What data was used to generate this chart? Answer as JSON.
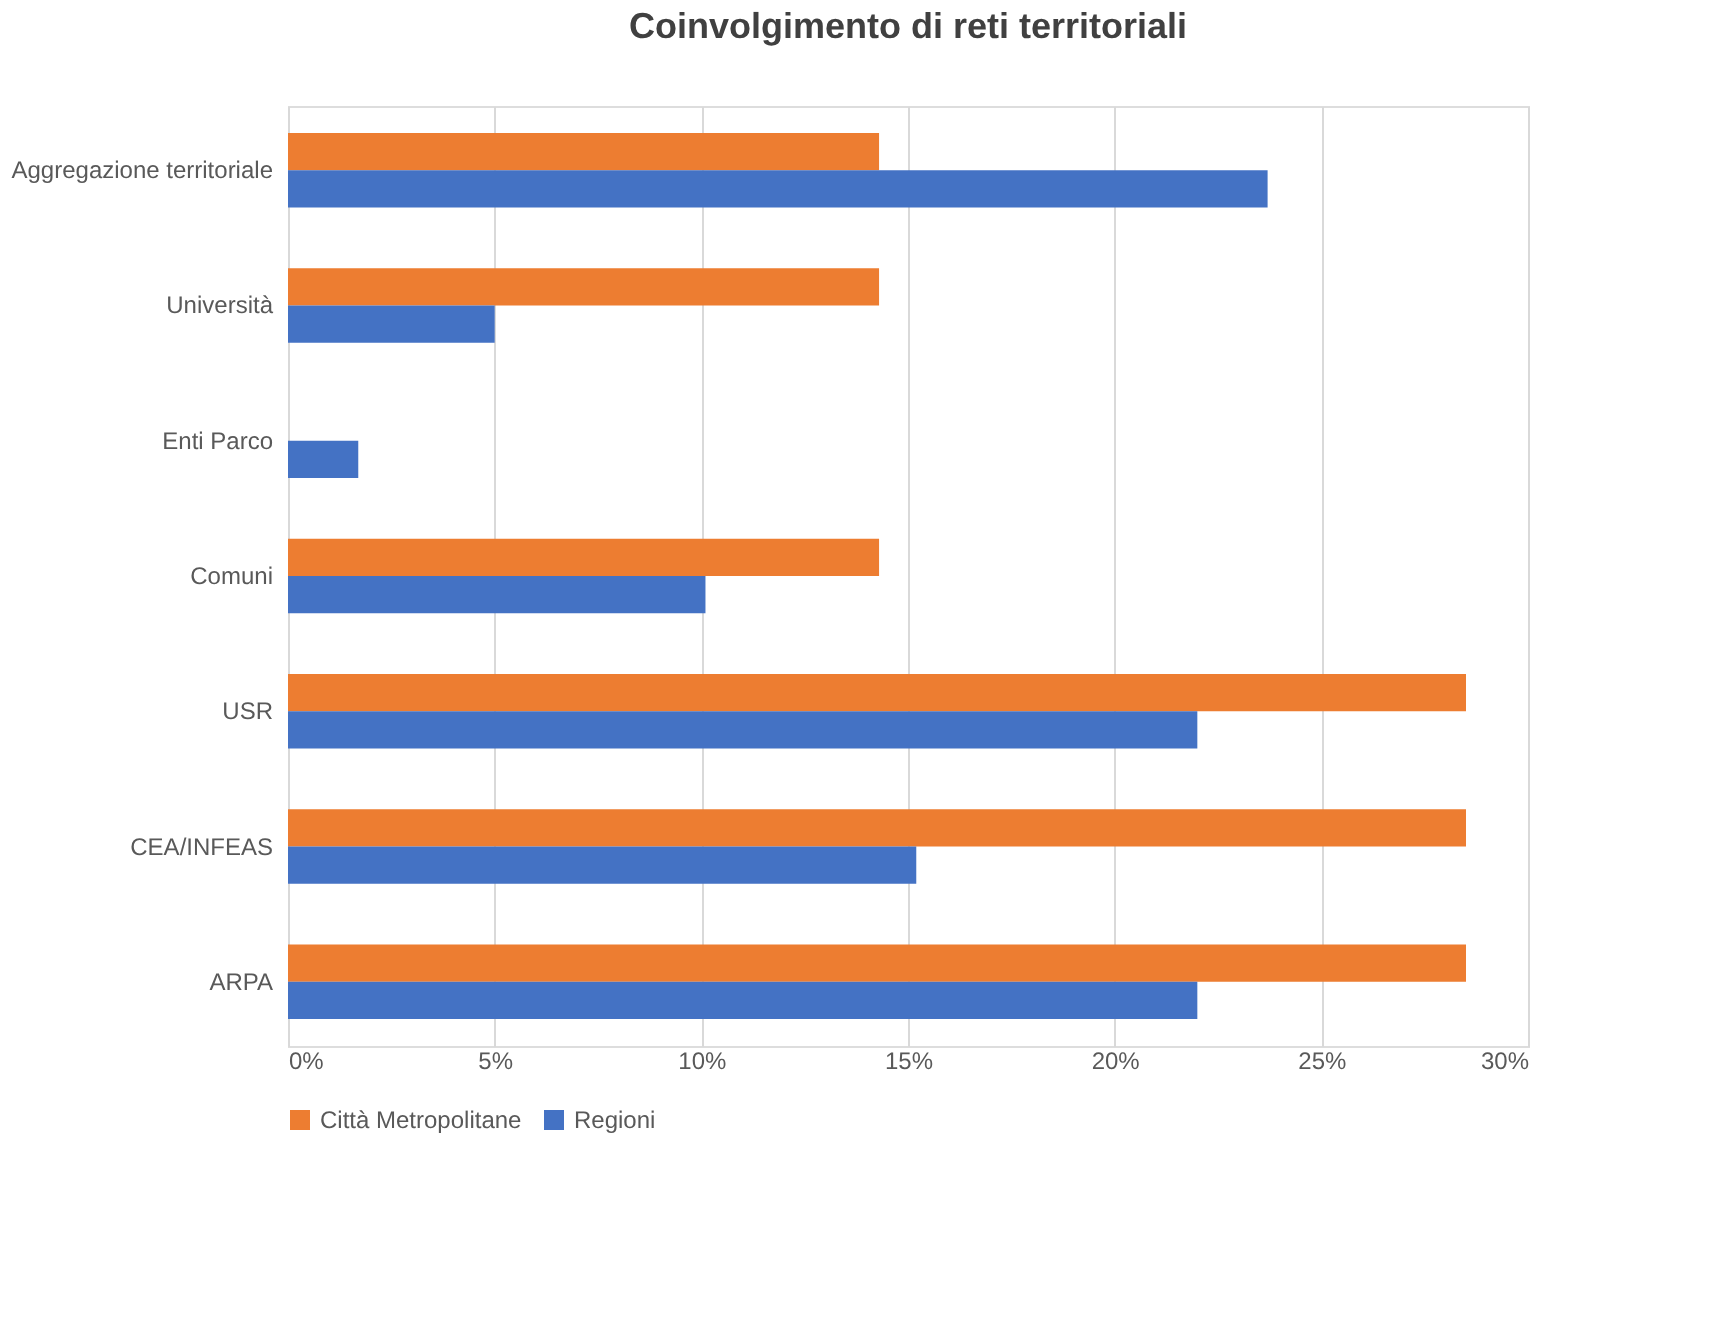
{
  "chart_data": {
    "type": "bar",
    "orientation": "horizontal",
    "title": "Coinvolgimento di reti territoriali",
    "categories": [
      "Aggregazione territoriale",
      "Università",
      "Enti Parco",
      "Comuni",
      "USR",
      "CEA/INFEAS",
      "ARPA"
    ],
    "series": [
      {
        "name": "Città Metropolitane",
        "color": "#ed7d31",
        "values": [
          14.3,
          14.3,
          0,
          14.3,
          28.5,
          28.5,
          28.5
        ]
      },
      {
        "name": "Regioni",
        "color": "#4472c4",
        "values": [
          23.7,
          5.0,
          1.7,
          10.1,
          22.0,
          15.2,
          22.0
        ]
      }
    ],
    "xlim": [
      0,
      30
    ],
    "xticks": [
      {
        "value": 0,
        "label": "0%"
      },
      {
        "value": 5,
        "label": "5%"
      },
      {
        "value": 10,
        "label": "10%"
      },
      {
        "value": 15,
        "label": "15%"
      },
      {
        "value": 20,
        "label": "20%"
      },
      {
        "value": 25,
        "label": "25%"
      },
      {
        "value": 30,
        "label": "30%"
      }
    ],
    "grid": "x",
    "legend": "bottom"
  }
}
